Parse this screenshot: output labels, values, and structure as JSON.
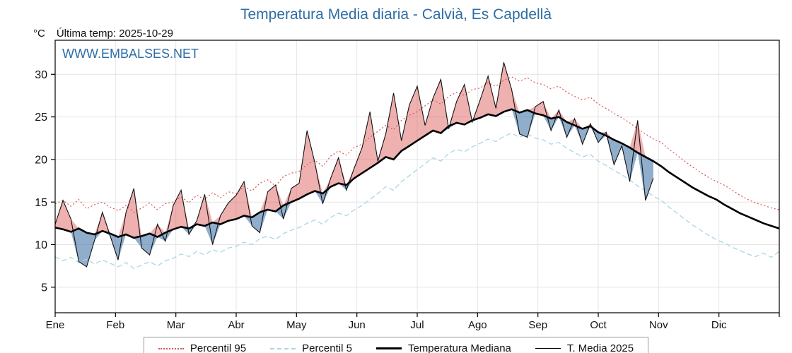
{
  "page": {
    "title": "Temperatura Media diaria - Calvià, Es Capdellà",
    "unit_label": "°C",
    "last_temp": "Última temp: 2025-10-29",
    "watermark": "WWW.EMBALSES.NET"
  },
  "legend": {
    "items": [
      {
        "label": "Percentil 95"
      },
      {
        "label": "Percentil 5"
      },
      {
        "label": "Temperatura Mediana"
      },
      {
        "label": "T. Media 2025"
      }
    ]
  },
  "chart_data": {
    "type": "line",
    "title": "Temperatura Media diaria - Calvià, Es Capdellà",
    "xlabel": "",
    "ylabel": "°C",
    "ylim": [
      2,
      34
    ],
    "yticks": [
      5,
      10,
      15,
      20,
      25,
      30
    ],
    "months": [
      "Ene",
      "Feb",
      "Mar",
      "Abr",
      "May",
      "Jun",
      "Jul",
      "Ago",
      "Sep",
      "Oct",
      "Nov",
      "Dic"
    ],
    "grid": true,
    "legend_position": "bottom",
    "fill_above_color": "rgba(217,83,79,0.45)",
    "fill_below_color": "rgba(70,120,170,0.60)",
    "series": [
      {
        "name": "Percentil 95",
        "color": "#d95454",
        "style": "dotted",
        "values": [
          14.8,
          15.2,
          14.5,
          15.3,
          14.2,
          14.7,
          15.0,
          14.4,
          14.0,
          14.6,
          13.8,
          14.3,
          14.9,
          14.1,
          14.8,
          15.0,
          15.6,
          14.9,
          15.8,
          15.3,
          16.1,
          15.5,
          16.2,
          16.0,
          16.8,
          16.3,
          17.2,
          17.6,
          16.9,
          18.0,
          18.4,
          18.6,
          19.4,
          19.9,
          19.2,
          20.4,
          21.0,
          20.5,
          21.4,
          21.8,
          22.6,
          23.3,
          24.0,
          23.5,
          24.6,
          25.2,
          25.6,
          26.3,
          27.0,
          26.5,
          27.4,
          27.9,
          27.5,
          28.2,
          28.4,
          29.0,
          28.6,
          29.3,
          29.7,
          29.2,
          29.6,
          29.0,
          28.8,
          28.3,
          28.6,
          27.9,
          27.4,
          27.0,
          27.3,
          26.5,
          26.0,
          25.4,
          24.9,
          24.3,
          23.6,
          23.0,
          22.4,
          22.0,
          21.2,
          20.5,
          19.8,
          19.1,
          18.5,
          17.9,
          17.4,
          17.0,
          16.4,
          15.8,
          15.3,
          14.9,
          14.6,
          14.3,
          14.1
        ]
      },
      {
        "name": "Percentil 5",
        "color": "#a9d6e5",
        "style": "dashed",
        "values": [
          8.6,
          8.1,
          8.5,
          7.9,
          8.3,
          7.7,
          8.2,
          7.8,
          7.4,
          7.9,
          7.2,
          7.6,
          8.0,
          7.5,
          8.1,
          8.4,
          8.9,
          8.6,
          9.2,
          8.8,
          9.4,
          9.1,
          9.6,
          9.8,
          10.3,
          10.0,
          10.7,
          11.0,
          10.6,
          11.3,
          11.7,
          12.0,
          12.5,
          12.9,
          12.4,
          13.2,
          13.7,
          13.4,
          14.1,
          14.6,
          15.3,
          16.0,
          16.8,
          16.4,
          17.4,
          18.1,
          18.8,
          19.5,
          20.2,
          19.8,
          20.7,
          21.2,
          20.9,
          21.5,
          21.9,
          22.4,
          22.1,
          22.7,
          23.1,
          22.6,
          23.0,
          22.5,
          22.3,
          21.8,
          22.0,
          21.3,
          20.8,
          20.3,
          20.6,
          19.8,
          19.3,
          18.7,
          18.2,
          17.6,
          16.9,
          16.3,
          15.7,
          15.2,
          14.4,
          13.7,
          13.0,
          12.3,
          11.7,
          11.1,
          10.6,
          10.2,
          9.7,
          9.3,
          8.9,
          8.6,
          9.0,
          8.5,
          9.2
        ]
      },
      {
        "name": "Temperatura Mediana",
        "color": "#000000",
        "style": "solid-thick",
        "values": [
          12.0,
          11.8,
          11.5,
          11.9,
          11.4,
          11.2,
          11.6,
          11.3,
          10.9,
          11.2,
          10.8,
          11.0,
          11.3,
          10.9,
          11.4,
          11.8,
          12.1,
          11.9,
          12.4,
          12.2,
          12.6,
          12.4,
          12.8,
          13.0,
          13.4,
          13.2,
          13.8,
          14.1,
          13.9,
          14.6,
          15.0,
          15.4,
          15.9,
          16.3,
          16.0,
          16.8,
          17.2,
          17.0,
          17.8,
          18.4,
          19.0,
          19.6,
          20.3,
          20.0,
          21.0,
          21.6,
          22.2,
          22.8,
          23.4,
          23.1,
          23.9,
          24.3,
          24.1,
          24.6,
          24.9,
          25.3,
          25.1,
          25.6,
          25.9,
          25.5,
          25.8,
          25.4,
          25.2,
          24.8,
          25.0,
          24.4,
          24.0,
          23.6,
          23.9,
          23.2,
          22.8,
          22.3,
          21.9,
          21.4,
          20.8,
          20.3,
          19.8,
          19.2,
          18.5,
          17.9,
          17.3,
          16.7,
          16.2,
          15.7,
          15.3,
          14.7,
          14.2,
          13.7,
          13.3,
          12.9,
          12.5,
          12.2,
          11.9
        ]
      },
      {
        "name": "T. Media 2025",
        "color": "#111111",
        "style": "solid-thin",
        "values": [
          12.4,
          15.2,
          13.0,
          8.0,
          7.4,
          10.5,
          13.8,
          11.0,
          8.2,
          13.8,
          16.6,
          9.6,
          8.8,
          12.4,
          10.4,
          14.6,
          16.4,
          11.2,
          12.8,
          15.9,
          10.0,
          13.4,
          14.9,
          15.8,
          17.4,
          12.2,
          11.4,
          16.2,
          17.0,
          13.0,
          16.6,
          17.2,
          23.4,
          19.6,
          14.8,
          17.8,
          20.2,
          16.4,
          19.0,
          21.4,
          25.6,
          19.8,
          23.0,
          27.8,
          22.2,
          26.4,
          28.6,
          24.0,
          27.2,
          29.4,
          23.6,
          26.8,
          28.8,
          24.4,
          27.0,
          29.8,
          26.0,
          31.4,
          28.2,
          23.0,
          22.6,
          26.2,
          26.8,
          23.4,
          25.8,
          22.6,
          24.8,
          21.8,
          24.2,
          22.0,
          23.2,
          19.4,
          21.6,
          17.4,
          24.6,
          15.2,
          17.8
        ]
      }
    ]
  }
}
